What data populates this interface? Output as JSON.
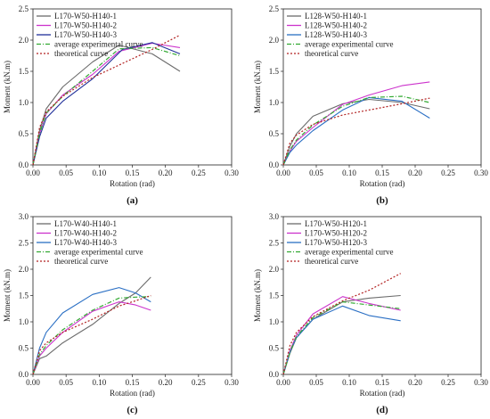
{
  "chart_data": [
    {
      "type": "line",
      "panel_label": "(a)",
      "xlabel": "Rotation (rad)",
      "ylabel": "Moment (kN.m)",
      "xlim": [
        0,
        0.3
      ],
      "ylim": [
        0,
        2.5
      ],
      "xticks": [
        "0.00",
        "0.05",
        "0.10",
        "0.15",
        "0.20",
        "0.25",
        "0.30"
      ],
      "yticks": [
        "0.0",
        "0.5",
        "1.0",
        "1.5",
        "2.0",
        "2.5"
      ],
      "legend_position": "top-left",
      "series": [
        {
          "name": "L170-W50-H140-1",
          "color": "#6b6b6b",
          "dash": "solid",
          "points": [
            [
              0,
              0
            ],
            [
              0.01,
              0.55
            ],
            [
              0.02,
              0.9
            ],
            [
              0.045,
              1.25
            ],
            [
              0.09,
              1.65
            ],
            [
              0.13,
              1.92
            ],
            [
              0.18,
              1.78
            ],
            [
              0.222,
              1.5
            ]
          ]
        },
        {
          "name": "L170-W50-H140-2",
          "color": "#cc33cc",
          "dash": "solid",
          "points": [
            [
              0,
              0
            ],
            [
              0.01,
              0.5
            ],
            [
              0.02,
              0.82
            ],
            [
              0.045,
              1.12
            ],
            [
              0.09,
              1.45
            ],
            [
              0.13,
              1.82
            ],
            [
              0.18,
              1.95
            ],
            [
              0.222,
              1.88
            ]
          ]
        },
        {
          "name": "L170-W50-H140-3",
          "color": "#1f2f9a",
          "dash": "solid",
          "points": [
            [
              0,
              0
            ],
            [
              0.01,
              0.45
            ],
            [
              0.02,
              0.75
            ],
            [
              0.045,
              1.02
            ],
            [
              0.09,
              1.38
            ],
            [
              0.135,
              1.85
            ],
            [
              0.18,
              1.96
            ],
            [
              0.222,
              1.78
            ]
          ]
        },
        {
          "name": "average experimental curve",
          "color": "#33aa33",
          "dash": "dashdot",
          "points": [
            [
              0,
              0
            ],
            [
              0.01,
              0.5
            ],
            [
              0.02,
              0.83
            ],
            [
              0.045,
              1.1
            ],
            [
              0.09,
              1.5
            ],
            [
              0.13,
              1.86
            ],
            [
              0.18,
              1.88
            ],
            [
              0.222,
              1.75
            ]
          ]
        },
        {
          "name": "theoretical curve",
          "color": "#b22222",
          "dash": "dot",
          "points": [
            [
              0,
              0
            ],
            [
              0.01,
              0.6
            ],
            [
              0.02,
              0.85
            ],
            [
              0.045,
              1.1
            ],
            [
              0.09,
              1.4
            ],
            [
              0.13,
              1.6
            ],
            [
              0.18,
              1.85
            ],
            [
              0.222,
              2.08
            ]
          ]
        }
      ]
    },
    {
      "type": "line",
      "panel_label": "(b)",
      "xlabel": "Rotation (rad)",
      "ylabel": "Moment (kN.m)",
      "xlim": [
        0,
        0.3
      ],
      "ylim": [
        0,
        2.5
      ],
      "xticks": [
        "0.00",
        "0.05",
        "0.10",
        "0.15",
        "0.20",
        "0.25",
        "0.30"
      ],
      "yticks": [
        "0.0",
        "0.5",
        "1.0",
        "1.5",
        "2.0",
        "2.5"
      ],
      "legend_position": "top-left",
      "series": [
        {
          "name": "L128-W50-H140-1",
          "color": "#6b6b6b",
          "dash": "solid",
          "points": [
            [
              0,
              0
            ],
            [
              0.01,
              0.3
            ],
            [
              0.02,
              0.5
            ],
            [
              0.045,
              0.78
            ],
            [
              0.09,
              0.98
            ],
            [
              0.13,
              1.05
            ],
            [
              0.18,
              1.0
            ],
            [
              0.222,
              0.9
            ]
          ]
        },
        {
          "name": "L128-W50-H140-2",
          "color": "#cc33cc",
          "dash": "solid",
          "points": [
            [
              0,
              0
            ],
            [
              0.01,
              0.22
            ],
            [
              0.02,
              0.38
            ],
            [
              0.045,
              0.6
            ],
            [
              0.09,
              0.97
            ],
            [
              0.13,
              1.12
            ],
            [
              0.18,
              1.27
            ],
            [
              0.222,
              1.33
            ]
          ]
        },
        {
          "name": "L128-W50-H140-3",
          "color": "#2a6fc4",
          "dash": "solid",
          "points": [
            [
              0,
              0
            ],
            [
              0.01,
              0.2
            ],
            [
              0.02,
              0.32
            ],
            [
              0.045,
              0.55
            ],
            [
              0.09,
              0.88
            ],
            [
              0.13,
              1.08
            ],
            [
              0.18,
              1.02
            ],
            [
              0.222,
              0.75
            ]
          ]
        },
        {
          "name": "average experimental curve",
          "color": "#33aa33",
          "dash": "dashdot",
          "points": [
            [
              0,
              0
            ],
            [
              0.01,
              0.24
            ],
            [
              0.02,
              0.4
            ],
            [
              0.045,
              0.64
            ],
            [
              0.09,
              0.94
            ],
            [
              0.13,
              1.08
            ],
            [
              0.18,
              1.1
            ],
            [
              0.222,
              1.0
            ]
          ]
        },
        {
          "name": "theoretical curve",
          "color": "#b22222",
          "dash": "dot",
          "points": [
            [
              0,
              0
            ],
            [
              0.01,
              0.35
            ],
            [
              0.02,
              0.48
            ],
            [
              0.045,
              0.65
            ],
            [
              0.09,
              0.8
            ],
            [
              0.13,
              0.88
            ],
            [
              0.18,
              0.98
            ],
            [
              0.222,
              1.07
            ]
          ]
        }
      ]
    },
    {
      "type": "line",
      "panel_label": "(c)",
      "xlabel": "Rotation (rad)",
      "ylabel": "Moment (kN.m)",
      "xlim": [
        0,
        0.3
      ],
      "ylim": [
        0,
        3.0
      ],
      "xticks": [
        "0.00",
        "0.05",
        "0.10",
        "0.15",
        "0.20",
        "0.25",
        "0.30"
      ],
      "yticks": [
        "0.0",
        "0.5",
        "1.0",
        "1.5",
        "2.0",
        "2.5",
        "3.0"
      ],
      "legend_position": "top-left",
      "series": [
        {
          "name": "L170-W40-H140-1",
          "color": "#6b6b6b",
          "dash": "solid",
          "points": [
            [
              0,
              0
            ],
            [
              0.01,
              0.3
            ],
            [
              0.02,
              0.35
            ],
            [
              0.045,
              0.6
            ],
            [
              0.09,
              0.95
            ],
            [
              0.13,
              1.35
            ],
            [
              0.155,
              1.55
            ],
            [
              0.178,
              1.85
            ]
          ]
        },
        {
          "name": "L170-W40-H140-2",
          "color": "#cc33cc",
          "dash": "solid",
          "points": [
            [
              0,
              0
            ],
            [
              0.01,
              0.35
            ],
            [
              0.02,
              0.5
            ],
            [
              0.045,
              0.8
            ],
            [
              0.09,
              1.2
            ],
            [
              0.13,
              1.38
            ],
            [
              0.155,
              1.32
            ],
            [
              0.178,
              1.22
            ]
          ]
        },
        {
          "name": "L170-W40-H140-3",
          "color": "#2a6fc4",
          "dash": "solid",
          "points": [
            [
              0,
              0
            ],
            [
              0.01,
              0.5
            ],
            [
              0.02,
              0.8
            ],
            [
              0.045,
              1.17
            ],
            [
              0.09,
              1.52
            ],
            [
              0.13,
              1.65
            ],
            [
              0.155,
              1.55
            ],
            [
              0.178,
              1.38
            ]
          ]
        },
        {
          "name": "average experimental curve",
          "color": "#33aa33",
          "dash": "dashdot",
          "points": [
            [
              0,
              0
            ],
            [
              0.01,
              0.38
            ],
            [
              0.02,
              0.55
            ],
            [
              0.045,
              0.85
            ],
            [
              0.09,
              1.22
            ],
            [
              0.13,
              1.45
            ],
            [
              0.155,
              1.47
            ],
            [
              0.178,
              1.48
            ]
          ]
        },
        {
          "name": "theoretical curve",
          "color": "#b22222",
          "dash": "dot",
          "points": [
            [
              0,
              0
            ],
            [
              0.01,
              0.45
            ],
            [
              0.02,
              0.6
            ],
            [
              0.045,
              0.8
            ],
            [
              0.09,
              1.05
            ],
            [
              0.13,
              1.3
            ],
            [
              0.155,
              1.4
            ],
            [
              0.178,
              1.5
            ]
          ]
        }
      ]
    },
    {
      "type": "line",
      "panel_label": "(d)",
      "xlabel": "Rotation (rad)",
      "ylabel": "Moment (kN.m)",
      "xlim": [
        0,
        0.3
      ],
      "ylim": [
        0,
        3.0
      ],
      "xticks": [
        "0.00",
        "0.05",
        "0.10",
        "0.15",
        "0.20",
        "0.25",
        "0.30"
      ],
      "yticks": [
        "0.0",
        "0.5",
        "1.0",
        "1.5",
        "2.0",
        "2.5",
        "3.0"
      ],
      "legend_position": "top-left",
      "series": [
        {
          "name": "L170-W50-H120-1",
          "color": "#6b6b6b",
          "dash": "solid",
          "points": [
            [
              0,
              0
            ],
            [
              0.01,
              0.4
            ],
            [
              0.02,
              0.7
            ],
            [
              0.045,
              1.05
            ],
            [
              0.09,
              1.38
            ],
            [
              0.13,
              1.45
            ],
            [
              0.178,
              1.5
            ]
          ]
        },
        {
          "name": "L170-W50-H120-2",
          "color": "#cc33cc",
          "dash": "solid",
          "points": [
            [
              0,
              0
            ],
            [
              0.01,
              0.45
            ],
            [
              0.02,
              0.75
            ],
            [
              0.045,
              1.15
            ],
            [
              0.09,
              1.48
            ],
            [
              0.13,
              1.35
            ],
            [
              0.178,
              1.22
            ]
          ]
        },
        {
          "name": "L170-W50-H120-3",
          "color": "#2a6fc4",
          "dash": "solid",
          "points": [
            [
              0,
              0
            ],
            [
              0.01,
              0.42
            ],
            [
              0.02,
              0.7
            ],
            [
              0.045,
              1.05
            ],
            [
              0.09,
              1.3
            ],
            [
              0.13,
              1.12
            ],
            [
              0.178,
              1.02
            ]
          ]
        },
        {
          "name": "average experimental curve",
          "color": "#33aa33",
          "dash": "dashdot",
          "points": [
            [
              0,
              0
            ],
            [
              0.01,
              0.42
            ],
            [
              0.02,
              0.72
            ],
            [
              0.045,
              1.08
            ],
            [
              0.09,
              1.38
            ],
            [
              0.13,
              1.32
            ],
            [
              0.178,
              1.25
            ]
          ]
        },
        {
          "name": "theoretical curve",
          "color": "#b22222",
          "dash": "dot",
          "points": [
            [
              0,
              0
            ],
            [
              0.01,
              0.55
            ],
            [
              0.02,
              0.8
            ],
            [
              0.045,
              1.1
            ],
            [
              0.09,
              1.4
            ],
            [
              0.13,
              1.6
            ],
            [
              0.178,
              1.92
            ]
          ]
        }
      ]
    }
  ]
}
